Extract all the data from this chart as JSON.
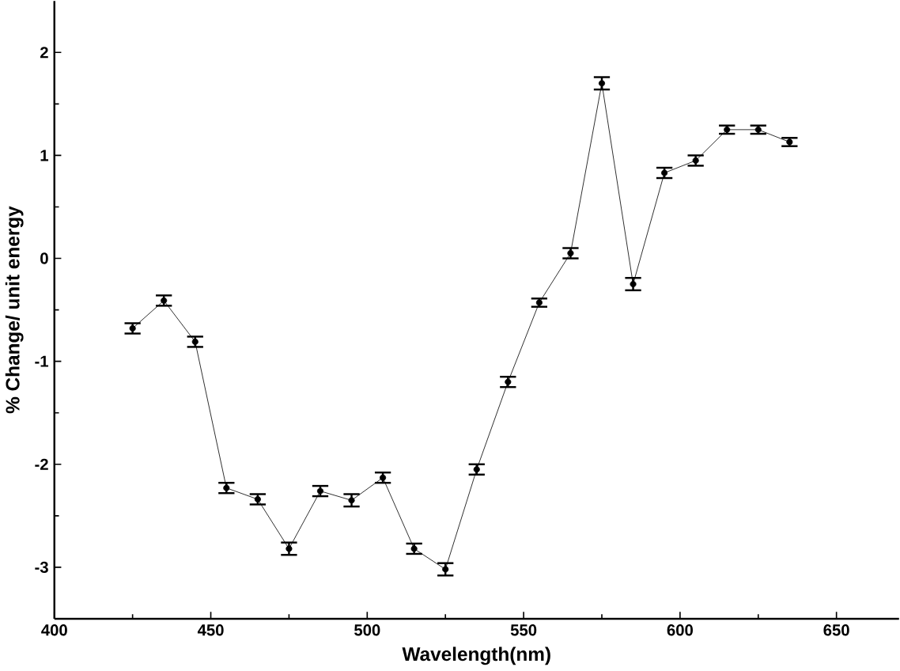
{
  "chart_data": {
    "type": "line",
    "xlabel": "Wavelength(nm)",
    "ylabel": "% Change/ unit energy",
    "x": [
      425,
      435,
      445,
      455,
      465,
      475,
      485,
      495,
      505,
      515,
      525,
      535,
      545,
      555,
      565,
      575,
      585,
      595,
      605,
      615,
      625,
      635
    ],
    "series": [
      {
        "color": "#000000",
        "values": [
          -0.68,
          -0.41,
          -0.81,
          -2.23,
          -2.34,
          -2.82,
          -2.26,
          -2.35,
          -2.13,
          -2.82,
          -3.02,
          -2.05,
          -1.2,
          -0.43,
          0.05,
          1.7,
          -0.25,
          0.83,
          0.95,
          1.25,
          1.25,
          1.13
        ],
        "errors": [
          0.05,
          0.05,
          0.05,
          0.05,
          0.05,
          0.06,
          0.05,
          0.06,
          0.05,
          0.05,
          0.06,
          0.05,
          0.05,
          0.04,
          0.05,
          0.06,
          0.06,
          0.05,
          0.05,
          0.04,
          0.04,
          0.04
        ]
      }
    ],
    "xlim": [
      400,
      670
    ],
    "ylim": [
      -3.5,
      2.5
    ],
    "xticks": [
      400,
      450,
      500,
      550,
      600,
      650
    ],
    "yticks": [
      -3,
      -2,
      -1,
      0,
      1,
      2
    ],
    "marker": "circle",
    "line_style": "solid"
  }
}
